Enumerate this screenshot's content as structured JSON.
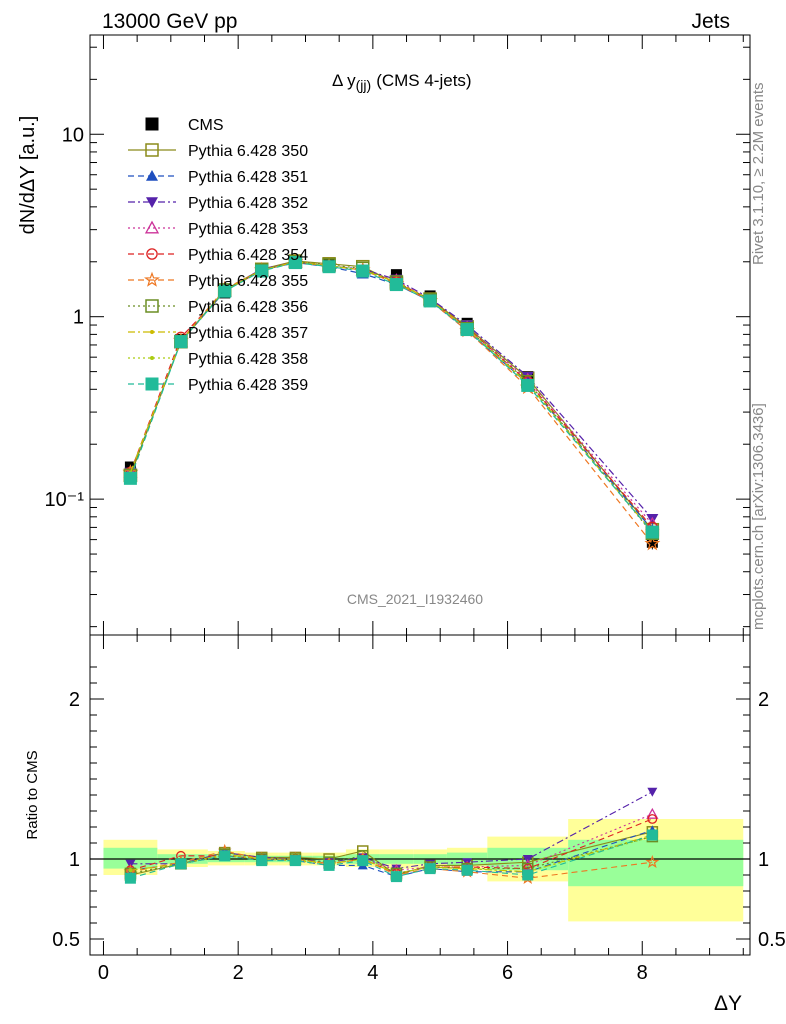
{
  "header": {
    "left": "13000 GeV pp",
    "right": "Jets"
  },
  "side_labels": {
    "rivet": "Rivet 3.1.10, ≥ 2.2M events",
    "mcplots": "mcplots.cern.ch [arXiv:1306.3436]"
  },
  "chart_data": [
    {
      "type": "scatter",
      "title_main": "Δ y",
      "title_sub": "(jj)",
      "title_rest": "(CMS 4-jets)",
      "watermark": "CMS_2021_I1932460",
      "ylabel": "dN/dΔY [a.u.]",
      "yscale": "log",
      "xlim": [
        -0.2,
        9.6
      ],
      "ylim": [
        0.018,
        35
      ],
      "yticks": [
        0.1,
        1,
        10
      ],
      "ytick_labels": [
        "10⁻¹",
        "1",
        "10"
      ],
      "x": [
        0.4,
        1.15,
        1.8,
        2.35,
        2.85,
        3.35,
        3.85,
        4.35,
        4.85,
        5.4,
        6.3,
        8.15
      ],
      "series": [
        {
          "name": "CMS",
          "color": "#000000",
          "marker": "filled-square",
          "line": "none",
          "values": [
            0.15,
            0.75,
            1.35,
            1.8,
            2.0,
            1.95,
            1.8,
            1.7,
            1.3,
            0.92,
            0.47,
            0.058
          ],
          "errors": [
            0.01,
            0.03,
            0.04,
            0.04,
            0.04,
            0.04,
            0.04,
            0.04,
            0.03,
            0.02,
            0.02,
            0.005
          ]
        },
        {
          "name": "Pythia 6.428 350",
          "color": "#8b8b1a",
          "marker": "open-square",
          "line": "solid",
          "values": [
            0.135,
            0.73,
            1.4,
            1.82,
            2.02,
            1.95,
            1.88,
            1.52,
            1.25,
            0.88,
            0.46,
            0.068
          ]
        },
        {
          "name": "Pythia 6.428 351",
          "color": "#1f4fbf",
          "marker": "filled-triangle-up",
          "line": "dashed",
          "values": [
            0.14,
            0.73,
            1.38,
            1.8,
            1.98,
            1.88,
            1.72,
            1.5,
            1.22,
            0.84,
            0.43,
            0.068
          ]
        },
        {
          "name": "Pythia 6.428 352",
          "color": "#5522aa",
          "marker": "filled-triangle-down",
          "line": "dashdot",
          "values": [
            0.14,
            0.73,
            1.4,
            1.82,
            2.0,
            1.9,
            1.82,
            1.6,
            1.26,
            0.9,
            0.47,
            0.078
          ]
        },
        {
          "name": "Pythia 6.428 353",
          "color": "#cc3399",
          "marker": "open-triangle-up",
          "line": "dotted",
          "values": [
            0.14,
            0.73,
            1.38,
            1.8,
            1.98,
            1.9,
            1.8,
            1.58,
            1.24,
            0.87,
            0.45,
            0.073
          ]
        },
        {
          "name": "Pythia 6.428 354",
          "color": "#dd2222",
          "marker": "open-circle",
          "line": "dashed",
          "values": [
            0.14,
            0.77,
            1.38,
            1.8,
            2.0,
            1.9,
            1.8,
            1.55,
            1.24,
            0.87,
            0.44,
            0.07
          ]
        },
        {
          "name": "Pythia 6.428 355",
          "color": "#ee7722",
          "marker": "open-star",
          "line": "dashed",
          "values": [
            0.14,
            0.74,
            1.42,
            1.8,
            2.0,
            1.9,
            1.8,
            1.52,
            1.22,
            0.84,
            0.41,
            0.057
          ]
        },
        {
          "name": "Pythia 6.428 356",
          "color": "#6b8e23",
          "marker": "open-square",
          "line": "dotted",
          "values": [
            0.135,
            0.73,
            1.4,
            1.8,
            2.0,
            1.92,
            1.84,
            1.55,
            1.24,
            0.86,
            0.44,
            0.065
          ]
        },
        {
          "name": "Pythia 6.428 357",
          "color": "#ccbb00",
          "marker": "small-dot",
          "line": "dashdot",
          "values": [
            0.14,
            0.73,
            1.4,
            1.8,
            2.0,
            1.9,
            1.8,
            1.55,
            1.24,
            0.86,
            0.43,
            0.066
          ]
        },
        {
          "name": "Pythia 6.428 358",
          "color": "#aacc11",
          "marker": "small-dot",
          "line": "dotted",
          "values": [
            0.14,
            0.73,
            1.38,
            1.8,
            1.98,
            1.9,
            1.8,
            1.55,
            1.24,
            0.86,
            0.43,
            0.066
          ]
        },
        {
          "name": "Pythia 6.428 359",
          "color": "#22bb99",
          "marker": "filled-square",
          "line": "dashed",
          "values": [
            0.13,
            0.73,
            1.38,
            1.78,
            1.98,
            1.88,
            1.78,
            1.5,
            1.22,
            0.85,
            0.42,
            0.066
          ]
        }
      ]
    },
    {
      "type": "scatter",
      "ylabel": "Ratio to CMS",
      "xlabel": "ΔY",
      "ylim": [
        0.4,
        2.4
      ],
      "xlim": [
        -0.2,
        9.6
      ],
      "yticks": [
        0.5,
        1,
        2
      ],
      "ytick_labels": [
        "0.5",
        "1",
        "2"
      ],
      "xticks": [
        0,
        2,
        4,
        6,
        8
      ],
      "xtick_labels": [
        "0",
        "2",
        "4",
        "6",
        "8"
      ],
      "bands": [
        {
          "xlo": 0.0,
          "xhi": 0.8,
          "green": [
            0.94,
            1.07
          ],
          "yellow": [
            0.9,
            1.12
          ]
        },
        {
          "xlo": 0.8,
          "xhi": 1.55,
          "green": [
            0.97,
            1.03
          ],
          "yellow": [
            0.95,
            1.06
          ]
        },
        {
          "xlo": 1.55,
          "xhi": 2.1,
          "green": [
            0.98,
            1.03
          ],
          "yellow": [
            0.96,
            1.05
          ]
        },
        {
          "xlo": 2.1,
          "xhi": 2.6,
          "green": [
            0.98,
            1.02
          ],
          "yellow": [
            0.96,
            1.04
          ]
        },
        {
          "xlo": 2.6,
          "xhi": 3.1,
          "green": [
            0.98,
            1.02
          ],
          "yellow": [
            0.96,
            1.04
          ]
        },
        {
          "xlo": 3.1,
          "xhi": 3.6,
          "green": [
            0.98,
            1.02
          ],
          "yellow": [
            0.96,
            1.04
          ]
        },
        {
          "xlo": 3.6,
          "xhi": 4.1,
          "green": [
            0.97,
            1.03
          ],
          "yellow": [
            0.95,
            1.06
          ]
        },
        {
          "xlo": 4.1,
          "xhi": 4.6,
          "green": [
            0.97,
            1.03
          ],
          "yellow": [
            0.94,
            1.06
          ]
        },
        {
          "xlo": 4.6,
          "xhi": 5.1,
          "green": [
            0.97,
            1.03
          ],
          "yellow": [
            0.94,
            1.06
          ]
        },
        {
          "xlo": 5.1,
          "xhi": 5.7,
          "green": [
            0.96,
            1.04
          ],
          "yellow": [
            0.93,
            1.07
          ]
        },
        {
          "xlo": 5.7,
          "xhi": 6.9,
          "green": [
            0.93,
            1.07
          ],
          "yellow": [
            0.86,
            1.14
          ]
        },
        {
          "xlo": 6.9,
          "xhi": 9.5,
          "green": [
            0.83,
            1.12
          ],
          "yellow": [
            0.61,
            1.25
          ]
        }
      ],
      "series": [
        {
          "name": "CMS",
          "color": "#000000",
          "marker": "none",
          "line": "solid",
          "values": [
            1,
            1,
            1,
            1,
            1,
            1,
            1,
            1,
            1,
            1,
            1,
            1
          ]
        },
        {
          "name": "Pythia 6.428 350",
          "color": "#8b8b1a",
          "marker": "open-square",
          "line": "solid",
          "values": [
            0.9,
            0.97,
            1.04,
            1.01,
            1.01,
            1.0,
            1.05,
            0.9,
            0.96,
            0.96,
            0.98,
            1.17
          ]
        },
        {
          "name": "Pythia 6.428 351",
          "color": "#1f4fbf",
          "marker": "filled-triangle-up",
          "line": "dashed",
          "values": [
            0.93,
            0.97,
            1.02,
            1.0,
            0.99,
            0.96,
            0.96,
            0.89,
            0.94,
            0.92,
            0.92,
            1.18
          ]
        },
        {
          "name": "Pythia 6.428 352",
          "color": "#5522aa",
          "marker": "filled-triangle-down",
          "line": "dashdot",
          "values": [
            0.97,
            0.97,
            1.04,
            1.01,
            1.0,
            0.98,
            1.01,
            0.94,
            0.97,
            0.98,
            1.0,
            1.42
          ]
        },
        {
          "name": "Pythia 6.428 353",
          "color": "#cc3399",
          "marker": "open-triangle-up",
          "line": "dotted",
          "values": [
            0.93,
            0.97,
            1.02,
            1.0,
            0.99,
            0.97,
            1.0,
            0.93,
            0.95,
            0.95,
            0.96,
            1.28
          ]
        },
        {
          "name": "Pythia 6.428 354",
          "color": "#dd2222",
          "marker": "open-circle",
          "line": "dashed",
          "values": [
            0.93,
            1.02,
            1.02,
            1.0,
            1.0,
            0.97,
            1.0,
            0.91,
            0.95,
            0.95,
            0.94,
            1.25
          ]
        },
        {
          "name": "Pythia 6.428 355",
          "color": "#ee7722",
          "marker": "open-star",
          "line": "dashed",
          "values": [
            0.92,
            0.98,
            1.05,
            1.0,
            1.0,
            0.97,
            1.0,
            0.9,
            0.94,
            0.92,
            0.88,
            0.98
          ]
        },
        {
          "name": "Pythia 6.428 356",
          "color": "#6b8e23",
          "marker": "open-square",
          "line": "dotted",
          "values": [
            0.91,
            0.97,
            1.03,
            1.0,
            1.0,
            0.98,
            1.02,
            0.91,
            0.95,
            0.94,
            0.94,
            1.14
          ]
        },
        {
          "name": "Pythia 6.428 357",
          "color": "#ccbb00",
          "marker": "small-dot",
          "line": "dashdot",
          "values": [
            0.93,
            0.97,
            1.03,
            1.0,
            1.0,
            0.97,
            1.0,
            0.91,
            0.95,
            0.94,
            0.92,
            1.15
          ]
        },
        {
          "name": "Pythia 6.428 358",
          "color": "#aacc11",
          "marker": "small-dot",
          "line": "dotted",
          "values": [
            0.93,
            0.97,
            1.02,
            1.0,
            0.99,
            0.97,
            1.0,
            0.91,
            0.95,
            0.94,
            0.92,
            1.14
          ]
        },
        {
          "name": "Pythia 6.428 359",
          "color": "#22bb99",
          "marker": "filled-square",
          "line": "dashed",
          "values": [
            0.88,
            0.97,
            1.02,
            0.99,
            0.99,
            0.96,
            0.99,
            0.89,
            0.94,
            0.93,
            0.9,
            1.15
          ]
        }
      ]
    }
  ]
}
